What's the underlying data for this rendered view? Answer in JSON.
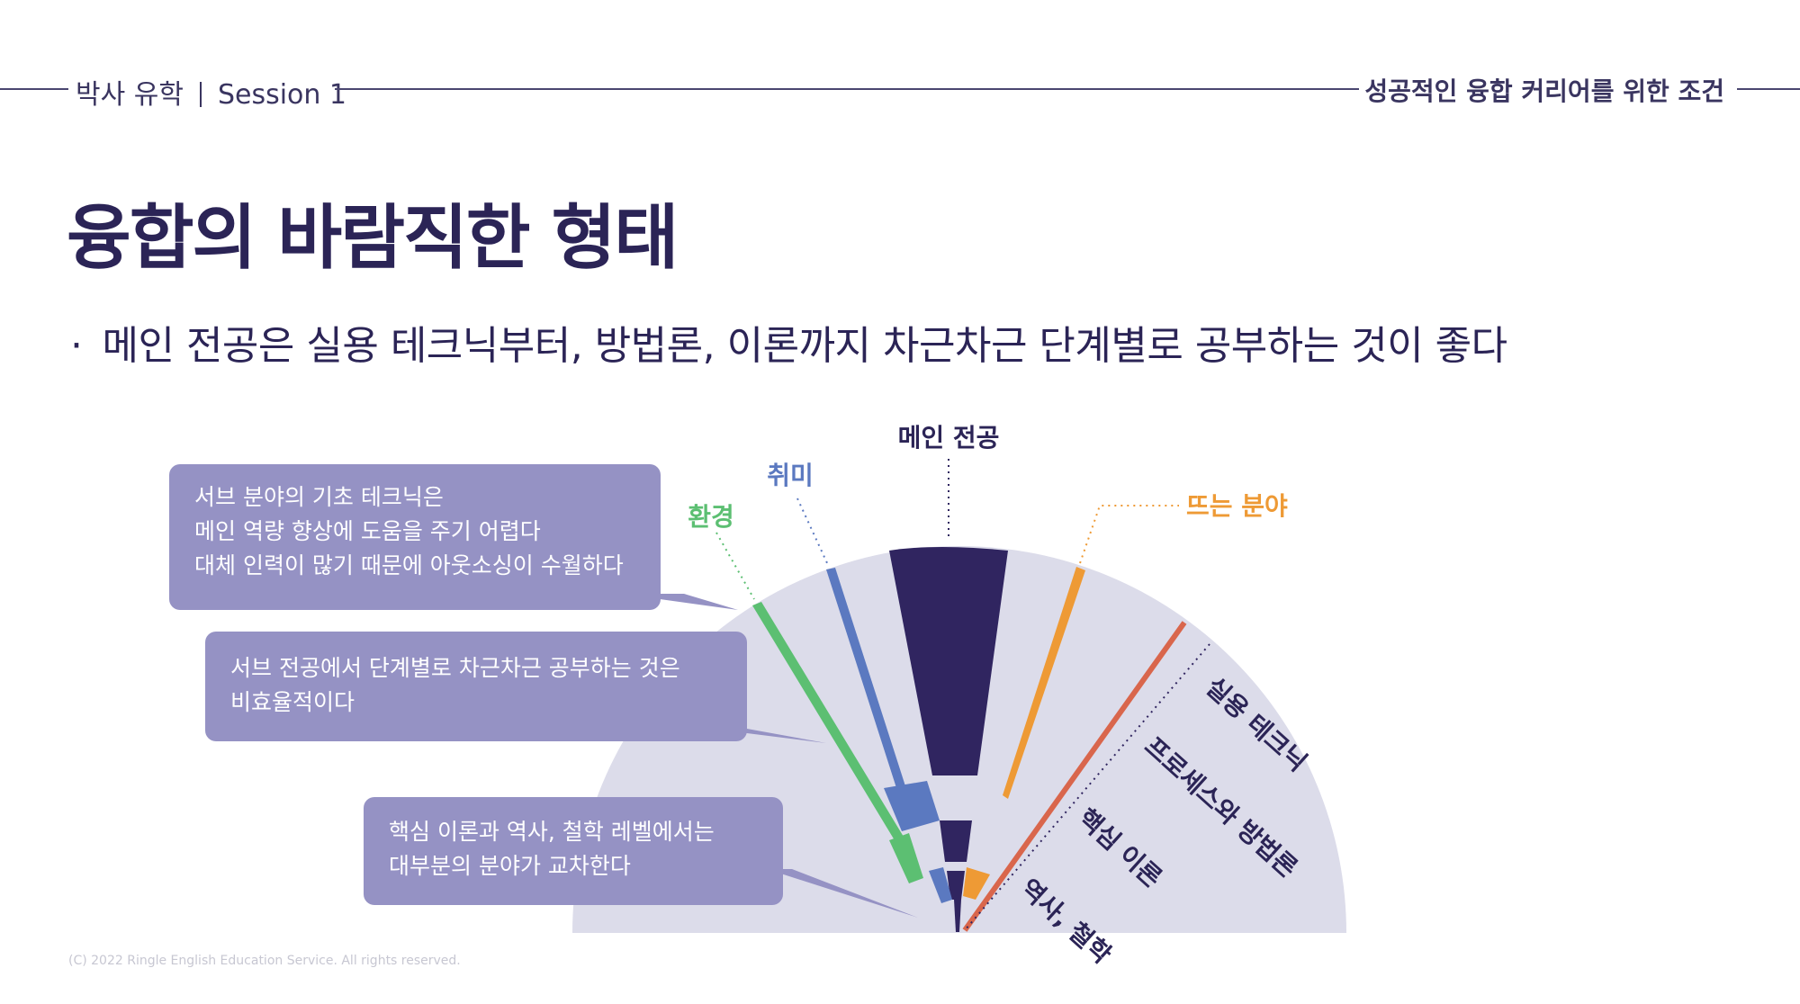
{
  "header": {
    "left_course": "박사 유학",
    "left_session": "Session 1",
    "right_title": "성공적인 융합 커리어를 위한 조건"
  },
  "title": "융합의 바람직한 형태",
  "bullet": {
    "dot": "·",
    "text": "메인 전공은 실용 테크닉부터, 방법론, 이론까지 차근차근 단계별로 공부하는 것이 좋다"
  },
  "callouts": [
    {
      "lines": [
        "서브 분야의 기초 테크닉은",
        "메인 역량 향상에 도움을 주기 어렵다",
        "대체 인력이 많기 때문에 아웃소싱이 수월하다"
      ]
    },
    {
      "lines": [
        "서브 전공에서 단계별로 차근차근 공부하는 것은",
        "비효율적이다"
      ]
    },
    {
      "lines": [
        "핵심 이론과 역사, 철학 레벨에서는",
        "대부분의 분야가 교차한다"
      ]
    }
  ],
  "diagram": {
    "labels": {
      "main": "메인 전공",
      "hobby": "취미",
      "environment": "환경",
      "trending": "뜨는 분야"
    },
    "levels": [
      "실용 테크닉",
      "프로세스와 방법론",
      "핵심 이론",
      "역사, 철학"
    ],
    "colors": {
      "main": "#302560",
      "hobby": "#5b79c0",
      "environment": "#5cbf72",
      "trending": "#ee9a35",
      "red": "#d9664c",
      "fan": "#dcdcea",
      "callout": "#9592c4"
    }
  },
  "footer": "(C) 2022 Ringle English Education Service. All rights reserved."
}
